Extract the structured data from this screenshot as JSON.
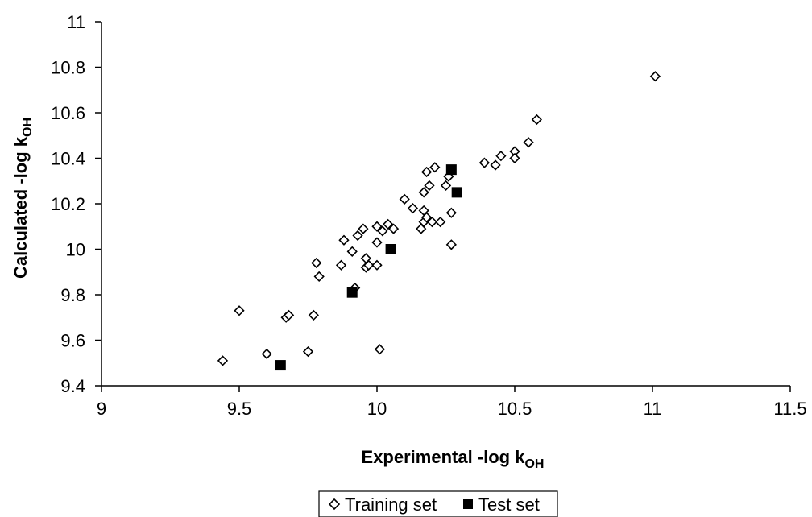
{
  "chart_data": {
    "type": "scatter",
    "xlabel": "Experimental -log k",
    "xlabel_sub": "OH",
    "ylabel": "Calculated -log k",
    "ylabel_sub": "OH",
    "xlim": [
      9,
      11.5
    ],
    "ylim": [
      9.4,
      11
    ],
    "xticks": [
      9,
      9.5,
      10,
      10.5,
      11,
      11.5
    ],
    "yticks": [
      9.4,
      9.6,
      9.8,
      10,
      10.2,
      10.4,
      10.6,
      10.8,
      11
    ],
    "xtick_labels": [
      "9",
      "9.5",
      "10",
      "10.5",
      "11",
      "11.5"
    ],
    "ytick_labels": [
      "9.4",
      "9.6",
      "9.8",
      "10",
      "10.2",
      "10.4",
      "10.6",
      "10.8",
      "11"
    ],
    "grid": false,
    "legend_position": "bottom",
    "series": [
      {
        "name": "Training set",
        "marker": "diamond-open",
        "color": "#000000",
        "points": [
          [
            9.44,
            9.51
          ],
          [
            9.5,
            9.73
          ],
          [
            9.6,
            9.54
          ],
          [
            9.67,
            9.7
          ],
          [
            9.68,
            9.71
          ],
          [
            9.75,
            9.55
          ],
          [
            9.77,
            9.71
          ],
          [
            9.78,
            9.94
          ],
          [
            9.79,
            9.88
          ],
          [
            9.87,
            9.93
          ],
          [
            9.88,
            10.04
          ],
          [
            9.91,
            9.99
          ],
          [
            9.92,
            9.83
          ],
          [
            9.93,
            10.06
          ],
          [
            9.95,
            10.09
          ],
          [
            9.96,
            9.92
          ],
          [
            9.96,
            9.96
          ],
          [
            9.97,
            9.93
          ],
          [
            10.0,
            10.1
          ],
          [
            10.0,
            10.03
          ],
          [
            10.0,
            9.93
          ],
          [
            10.01,
            9.56
          ],
          [
            10.02,
            10.08
          ],
          [
            10.04,
            10.11
          ],
          [
            10.06,
            10.09
          ],
          [
            10.1,
            10.22
          ],
          [
            10.13,
            10.18
          ],
          [
            10.16,
            10.09
          ],
          [
            10.17,
            10.12
          ],
          [
            10.17,
            10.17
          ],
          [
            10.17,
            10.25
          ],
          [
            10.18,
            10.34
          ],
          [
            10.18,
            10.14
          ],
          [
            10.19,
            10.28
          ],
          [
            10.2,
            10.12
          ],
          [
            10.21,
            10.36
          ],
          [
            10.23,
            10.12
          ],
          [
            10.25,
            10.28
          ],
          [
            10.26,
            10.32
          ],
          [
            10.27,
            10.16
          ],
          [
            10.27,
            10.02
          ],
          [
            10.39,
            10.38
          ],
          [
            10.43,
            10.37
          ],
          [
            10.45,
            10.41
          ],
          [
            10.5,
            10.43
          ],
          [
            10.5,
            10.4
          ],
          [
            10.55,
            10.47
          ],
          [
            10.58,
            10.57
          ],
          [
            11.01,
            10.76
          ]
        ]
      },
      {
        "name": "Test set",
        "marker": "square-filled",
        "color": "#000000",
        "points": [
          [
            9.65,
            9.49
          ],
          [
            9.91,
            9.81
          ],
          [
            10.05,
            10.0
          ],
          [
            10.27,
            10.35
          ],
          [
            10.29,
            10.25
          ]
        ]
      }
    ]
  }
}
